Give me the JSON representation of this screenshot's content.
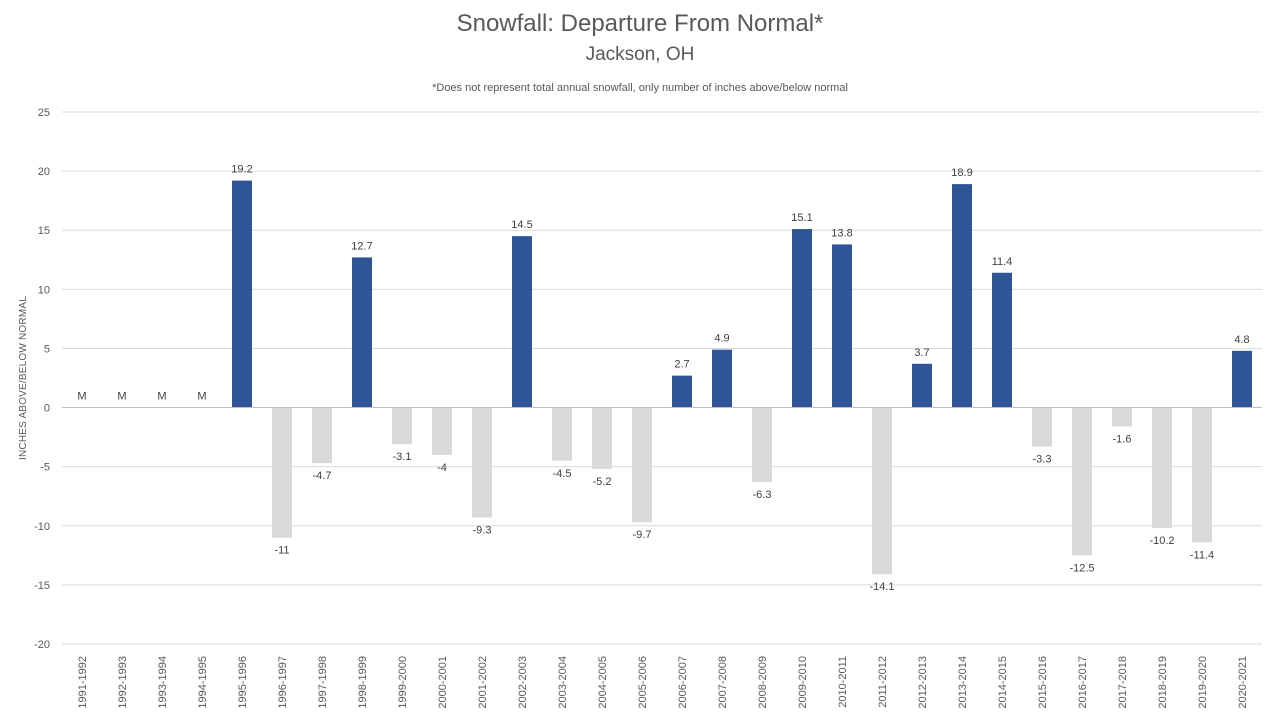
{
  "chart_data": {
    "type": "bar",
    "title": "Snowfall: Departure From Normal*",
    "subtitle": "Jackson, OH",
    "note": "*Does not represent  total annual snowfall, only number of inches above/below normal",
    "xlabel": "",
    "ylabel": "INCHES ABOVE/BELOW NORMAL",
    "ylim": [
      -20,
      25
    ],
    "yticks": [
      25,
      20,
      15,
      10,
      5,
      0,
      -5,
      -10,
      -15,
      -20
    ],
    "grid": true,
    "legend": "none",
    "categories": [
      "1991-1992",
      "1992-1993",
      "1993-1994",
      "1994-1995",
      "1995-1996",
      "1996-1997",
      "1997-1998",
      "1998-1999",
      "1999-2000",
      "2000-2001",
      "2001-2002",
      "2002-2003",
      "2003-2004",
      "2004-2005",
      "2005-2006",
      "2006-2007",
      "2007-2008",
      "2008-2009",
      "2009-2010",
      "2010-2011",
      "2011-2012",
      "2012-2013",
      "2013-2014",
      "2014-2015",
      "2015-2016",
      "2016-2017",
      "2017-2018",
      "2018-2019",
      "2019-2020",
      "2020-2021"
    ],
    "values": [
      null,
      null,
      null,
      null,
      19.2,
      -11,
      -4.7,
      12.7,
      -3.1,
      -4,
      -9.3,
      14.5,
      -4.5,
      -5.2,
      -9.7,
      2.7,
      4.9,
      -6.3,
      15.1,
      13.8,
      -14.1,
      3.7,
      18.9,
      11.4,
      -3.3,
      -12.5,
      -1.6,
      -10.2,
      -11.4,
      4.8
    ],
    "data_labels": [
      "M",
      "M",
      "M",
      "M",
      "19.2",
      "-11",
      "-4.7",
      "12.7",
      "-3.1",
      "-4",
      "-9.3",
      "14.5",
      "-4.5",
      "-5.2",
      "-9.7",
      "2.7",
      "4.9",
      "-6.3",
      "15.1",
      "13.8",
      "-14.1",
      "3.7",
      "18.9",
      "11.4",
      "-3.3",
      "-12.5",
      "-1.6",
      "-10.2",
      "-11.4",
      "4.8"
    ],
    "colors": {
      "positive": "#2F5597",
      "negative": "#D9D9D9",
      "grid": "#D9D9D9",
      "text": "#595959"
    }
  }
}
